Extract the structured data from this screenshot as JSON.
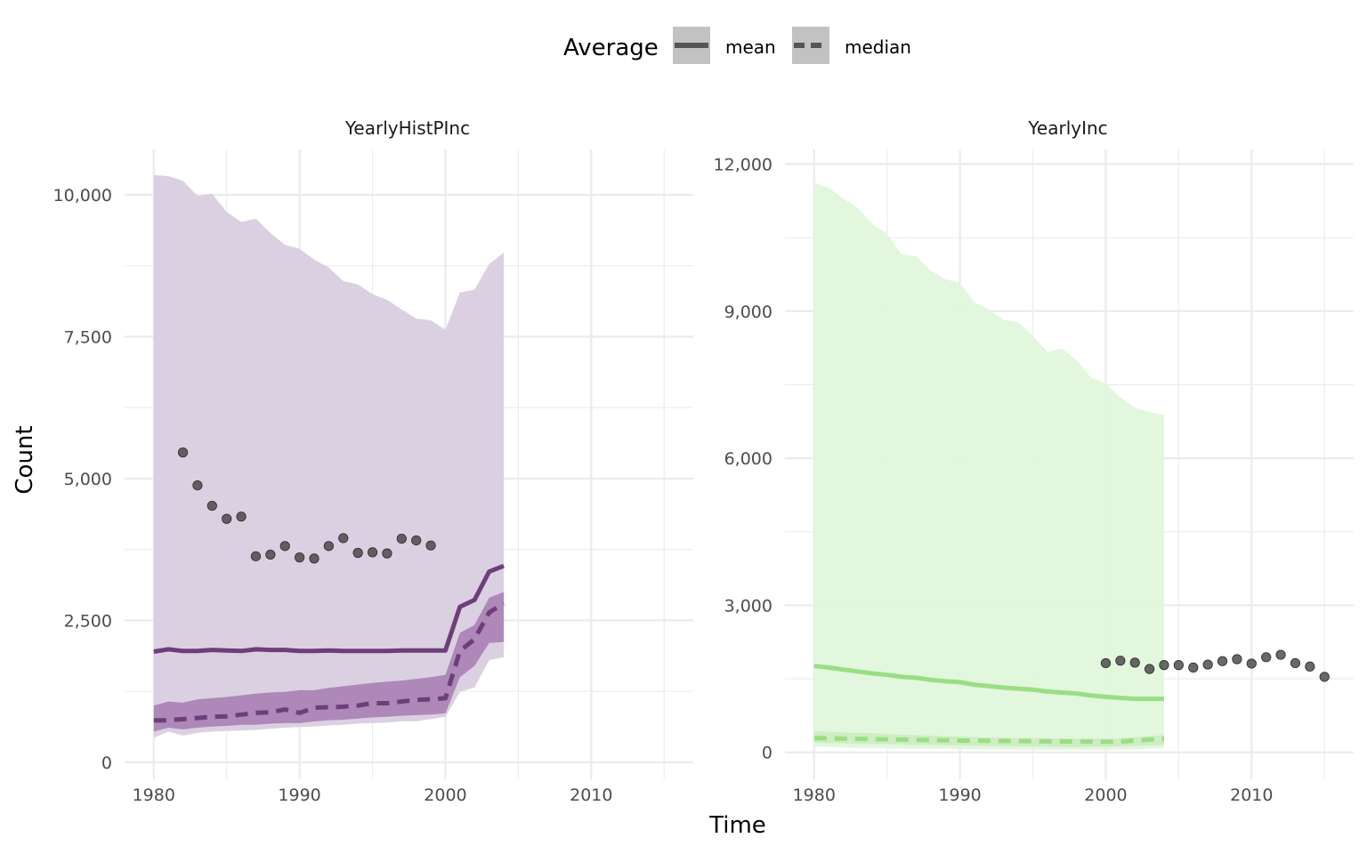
{
  "chart_data": {
    "type": "line",
    "xlabel": "Time",
    "ylabel": "Count",
    "legend": {
      "title": "Average",
      "position": "top",
      "entries": [
        {
          "label": "mean",
          "linetype": "solid"
        },
        {
          "label": "median",
          "linetype": "dashed"
        }
      ]
    },
    "grid": true,
    "panels": [
      {
        "title": "YearlyHistPInc",
        "color": "#6d3f7a",
        "ribbon_color": "#d9cde0",
        "inner_ribbon_color": "#9a6aa6",
        "xlim": [
          1978,
          2017
        ],
        "ylim": [
          -300,
          10800
        ],
        "xticks": [
          1980,
          1990,
          2000,
          2010
        ],
        "xtick_labels": [
          "1980",
          "1990",
          "2000",
          "2010"
        ],
        "yticks": [
          0,
          2500,
          5000,
          7500,
          10000
        ],
        "ytick_labels": [
          "0",
          "2,500",
          "5,000",
          "7,500",
          "10,000"
        ],
        "years": [
          1980,
          1981,
          1982,
          1983,
          1984,
          1985,
          1986,
          1987,
          1988,
          1989,
          1990,
          1991,
          1992,
          1993,
          1994,
          1995,
          1996,
          1997,
          1998,
          1999,
          2000,
          2001,
          2002,
          2003,
          2004
        ],
        "ribbon_upper": [
          10350,
          10330,
          10250,
          9980,
          10020,
          9700,
          9520,
          9580,
          9330,
          9120,
          9050,
          8860,
          8720,
          8480,
          8420,
          8250,
          8150,
          7980,
          7820,
          7790,
          7620,
          8280,
          8330,
          8780,
          8980
        ],
        "ribbon_lower": [
          430,
          540,
          470,
          520,
          540,
          550,
          560,
          570,
          590,
          610,
          620,
          630,
          650,
          660,
          680,
          690,
          700,
          720,
          720,
          760,
          800,
          1240,
          1320,
          1800,
          1850
        ],
        "inner_upper": [
          1000,
          1070,
          1050,
          1110,
          1130,
          1150,
          1180,
          1210,
          1230,
          1240,
          1270,
          1270,
          1310,
          1340,
          1370,
          1400,
          1420,
          1440,
          1470,
          1500,
          1540,
          2280,
          2420,
          2900,
          3000
        ],
        "inner_lower": [
          540,
          610,
          580,
          610,
          630,
          640,
          660,
          660,
          680,
          690,
          690,
          720,
          740,
          750,
          770,
          790,
          800,
          820,
          830,
          840,
          860,
          1500,
          1700,
          2100,
          2120
        ],
        "mean": [
          1950,
          1990,
          1960,
          1960,
          1980,
          1970,
          1960,
          1990,
          1980,
          1980,
          1960,
          1960,
          1970,
          1960,
          1960,
          1960,
          1960,
          1970,
          1970,
          1970,
          1970,
          2740,
          2860,
          3360,
          3460
        ],
        "median": [
          740,
          740,
          760,
          780,
          800,
          810,
          840,
          870,
          880,
          930,
          870,
          960,
          970,
          980,
          1000,
          1040,
          1040,
          1070,
          1100,
          1110,
          1130,
          1960,
          2170,
          2640,
          2800
        ],
        "points": [
          {
            "x": 1982,
            "y": 5460
          },
          {
            "x": 1983,
            "y": 4880
          },
          {
            "x": 1984,
            "y": 4520
          },
          {
            "x": 1985,
            "y": 4290
          },
          {
            "x": 1986,
            "y": 4330
          },
          {
            "x": 1987,
            "y": 3630
          },
          {
            "x": 1988,
            "y": 3660
          },
          {
            "x": 1989,
            "y": 3810
          },
          {
            "x": 1990,
            "y": 3610
          },
          {
            "x": 1991,
            "y": 3590
          },
          {
            "x": 1992,
            "y": 3810
          },
          {
            "x": 1993,
            "y": 3950
          },
          {
            "x": 1994,
            "y": 3690
          },
          {
            "x": 1995,
            "y": 3700
          },
          {
            "x": 1996,
            "y": 3680
          },
          {
            "x": 1997,
            "y": 3940
          },
          {
            "x": 1998,
            "y": 3910
          },
          {
            "x": 1999,
            "y": 3820
          }
        ]
      },
      {
        "title": "YearlyInc",
        "color": "#9ade84",
        "ribbon_color": "#e1f5dc",
        "inner_ribbon_color": "#c4eab8",
        "xlim": [
          1978,
          2017
        ],
        "ylim": [
          -550,
          12300
        ],
        "xticks": [
          1980,
          1990,
          2000,
          2010
        ],
        "xtick_labels": [
          "1980",
          "1990",
          "2000",
          "2010"
        ],
        "yticks": [
          0,
          3000,
          6000,
          9000,
          12000
        ],
        "ytick_labels": [
          "0",
          "3,000",
          "6,000",
          "9,000",
          "12,000"
        ],
        "years": [
          1980,
          1981,
          1982,
          1983,
          1984,
          1985,
          1986,
          1987,
          1988,
          1989,
          1990,
          1991,
          1992,
          1993,
          1994,
          1995,
          1996,
          1997,
          1998,
          1999,
          2000,
          2001,
          2002,
          2003,
          2004
        ],
        "ribbon_upper": [
          11620,
          11520,
          11300,
          11100,
          10780,
          10580,
          10160,
          10120,
          9830,
          9650,
          9580,
          9180,
          9040,
          8820,
          8780,
          8490,
          8170,
          8240,
          8000,
          7640,
          7530,
          7240,
          7030,
          6940,
          6880
        ],
        "ribbon_lower": [
          120,
          110,
          100,
          90,
          90,
          80,
          80,
          75,
          70,
          70,
          65,
          60,
          60,
          55,
          55,
          50,
          50,
          50,
          50,
          50,
          50,
          55,
          60,
          70,
          80
        ],
        "inner_upper": [
          430,
          420,
          410,
          400,
          390,
          370,
          360,
          350,
          340,
          330,
          320,
          310,
          300,
          300,
          290,
          290,
          280,
          280,
          280,
          280,
          270,
          290,
          310,
          330,
          350
        ],
        "inner_lower": [
          200,
          190,
          185,
          175,
          170,
          165,
          160,
          155,
          150,
          145,
          140,
          135,
          130,
          125,
          120,
          118,
          115,
          112,
          110,
          110,
          110,
          120,
          130,
          140,
          150
        ],
        "mean": [
          1760,
          1730,
          1690,
          1650,
          1610,
          1580,
          1540,
          1520,
          1480,
          1450,
          1430,
          1380,
          1350,
          1320,
          1300,
          1280,
          1240,
          1220,
          1200,
          1160,
          1130,
          1110,
          1090,
          1090,
          1090
        ],
        "median": [
          290,
          285,
          280,
          275,
          270,
          265,
          260,
          255,
          250,
          245,
          240,
          238,
          235,
          232,
          230,
          228,
          225,
          222,
          220,
          218,
          215,
          220,
          240,
          260,
          280
        ],
        "points": [
          {
            "x": 2000,
            "y": 1820
          },
          {
            "x": 2001,
            "y": 1870
          },
          {
            "x": 2002,
            "y": 1830
          },
          {
            "x": 2003,
            "y": 1700
          },
          {
            "x": 2004,
            "y": 1780
          },
          {
            "x": 2005,
            "y": 1780
          },
          {
            "x": 2006,
            "y": 1730
          },
          {
            "x": 2007,
            "y": 1790
          },
          {
            "x": 2008,
            "y": 1860
          },
          {
            "x": 2009,
            "y": 1900
          },
          {
            "x": 2010,
            "y": 1810
          },
          {
            "x": 2011,
            "y": 1940
          },
          {
            "x": 2012,
            "y": 1990
          },
          {
            "x": 2013,
            "y": 1820
          },
          {
            "x": 2014,
            "y": 1750
          },
          {
            "x": 2015,
            "y": 1540
          }
        ]
      }
    ]
  }
}
